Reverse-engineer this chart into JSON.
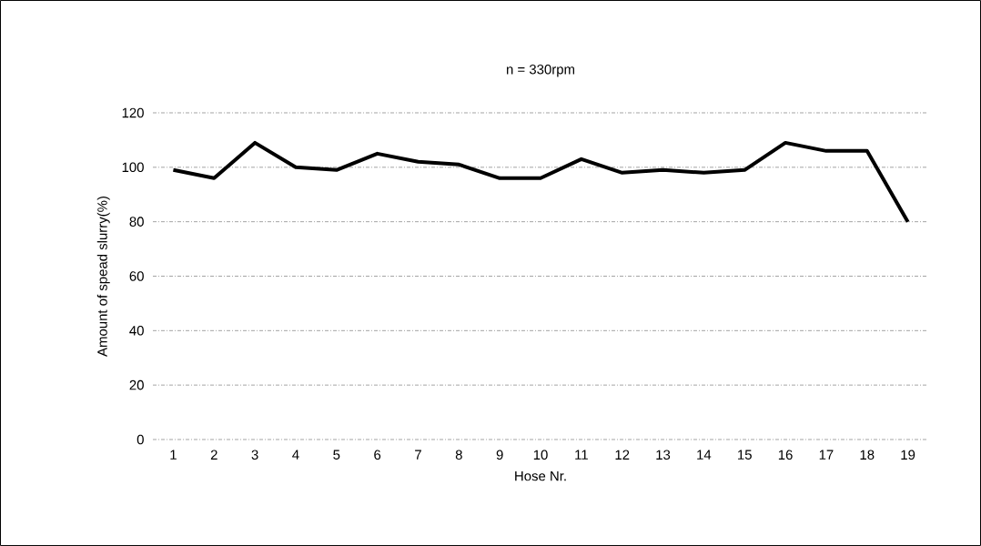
{
  "chart_data": {
    "type": "line",
    "title": "n = 330rpm",
    "xlabel": "Hose Nr.",
    "ylabel": "Amount of spead slurry(%)",
    "categories": [
      "1",
      "2",
      "3",
      "4",
      "5",
      "6",
      "7",
      "8",
      "9",
      "10",
      "11",
      "12",
      "13",
      "14",
      "15",
      "16",
      "17",
      "18",
      "19"
    ],
    "series": [
      {
        "color": "#000000",
        "values": [
          99,
          96,
          109,
          100,
          99,
          105,
          102,
          101,
          96,
          96,
          103,
          98,
          99,
          98,
          99,
          109,
          106,
          106,
          80
        ]
      }
    ],
    "ylim": [
      0,
      120
    ],
    "yticks": [
      0,
      20,
      40,
      60,
      80,
      100,
      120
    ],
    "grid": "y",
    "marker": "none",
    "line_style": "solid"
  }
}
